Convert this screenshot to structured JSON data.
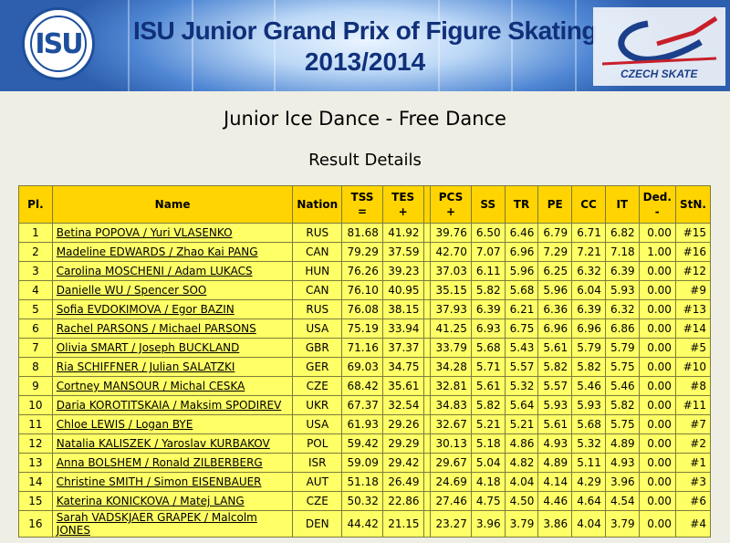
{
  "header": {
    "logo_text": "ISU",
    "title_line1": "ISU Junior Grand Prix of Figure Skating",
    "title_line2": "2013/2014",
    "sponsor_text": "CZECH SKATE"
  },
  "event_title": "Junior Ice Dance - Free Dance",
  "subtitle": "Result Details",
  "table": {
    "headers": {
      "pl": "Pl.",
      "name": "Name",
      "nation": "Nation",
      "tss": "TSS",
      "tss_sub": "=",
      "tes": "TES",
      "tes_sub": "+",
      "pcs": "PCS",
      "pcs_sub": "+",
      "ss": "SS",
      "tr": "TR",
      "pe": "PE",
      "cc": "CC",
      "it": "IT",
      "ded": "Ded.",
      "ded_sub": "-",
      "stn": "StN."
    },
    "rows": [
      {
        "pl": "1",
        "name": "Betina POPOVA / Yuri VLASENKO",
        "nation": "RUS",
        "tss": "81.68",
        "tes": "41.92",
        "pcs": "39.76",
        "ss": "6.50",
        "tr": "6.46",
        "pe": "6.79",
        "cc": "6.71",
        "it": "6.82",
        "ded": "0.00",
        "stn": "#15"
      },
      {
        "pl": "2",
        "name": "Madeline EDWARDS / Zhao Kai PANG",
        "nation": "CAN",
        "tss": "79.29",
        "tes": "37.59",
        "pcs": "42.70",
        "ss": "7.07",
        "tr": "6.96",
        "pe": "7.29",
        "cc": "7.21",
        "it": "7.18",
        "ded": "1.00",
        "stn": "#16"
      },
      {
        "pl": "3",
        "name": "Carolina MOSCHENI / Adam LUKACS",
        "nation": "HUN",
        "tss": "76.26",
        "tes": "39.23",
        "pcs": "37.03",
        "ss": "6.11",
        "tr": "5.96",
        "pe": "6.25",
        "cc": "6.32",
        "it": "6.39",
        "ded": "0.00",
        "stn": "#12"
      },
      {
        "pl": "4",
        "name": "Danielle WU / Spencer SOO",
        "nation": "CAN",
        "tss": "76.10",
        "tes": "40.95",
        "pcs": "35.15",
        "ss": "5.82",
        "tr": "5.68",
        "pe": "5.96",
        "cc": "6.04",
        "it": "5.93",
        "ded": "0.00",
        "stn": "#9"
      },
      {
        "pl": "5",
        "name": "Sofia EVDOKIMOVA / Egor BAZIN",
        "nation": "RUS",
        "tss": "76.08",
        "tes": "38.15",
        "pcs": "37.93",
        "ss": "6.39",
        "tr": "6.21",
        "pe": "6.36",
        "cc": "6.39",
        "it": "6.32",
        "ded": "0.00",
        "stn": "#13"
      },
      {
        "pl": "6",
        "name": "Rachel PARSONS / Michael PARSONS",
        "nation": "USA",
        "tss": "75.19",
        "tes": "33.94",
        "pcs": "41.25",
        "ss": "6.93",
        "tr": "6.75",
        "pe": "6.96",
        "cc": "6.96",
        "it": "6.86",
        "ded": "0.00",
        "stn": "#14"
      },
      {
        "pl": "7",
        "name": "Olivia SMART / Joseph BUCKLAND",
        "nation": "GBR",
        "tss": "71.16",
        "tes": "37.37",
        "pcs": "33.79",
        "ss": "5.68",
        "tr": "5.43",
        "pe": "5.61",
        "cc": "5.79",
        "it": "5.79",
        "ded": "0.00",
        "stn": "#5"
      },
      {
        "pl": "8",
        "name": "Ria SCHIFFNER / Julian SALATZKI",
        "nation": "GER",
        "tss": "69.03",
        "tes": "34.75",
        "pcs": "34.28",
        "ss": "5.71",
        "tr": "5.57",
        "pe": "5.82",
        "cc": "5.82",
        "it": "5.75",
        "ded": "0.00",
        "stn": "#10"
      },
      {
        "pl": "9",
        "name": "Cortney MANSOUR / Michal CESKA",
        "nation": "CZE",
        "tss": "68.42",
        "tes": "35.61",
        "pcs": "32.81",
        "ss": "5.61",
        "tr": "5.32",
        "pe": "5.57",
        "cc": "5.46",
        "it": "5.46",
        "ded": "0.00",
        "stn": "#8"
      },
      {
        "pl": "10",
        "name": "Daria KOROTITSKAIA / Maksim SPODIREV",
        "nation": "UKR",
        "tss": "67.37",
        "tes": "32.54",
        "pcs": "34.83",
        "ss": "5.82",
        "tr": "5.64",
        "pe": "5.93",
        "cc": "5.93",
        "it": "5.82",
        "ded": "0.00",
        "stn": "#11"
      },
      {
        "pl": "11",
        "name": "Chloe LEWIS / Logan BYE",
        "nation": "USA",
        "tss": "61.93",
        "tes": "29.26",
        "pcs": "32.67",
        "ss": "5.21",
        "tr": "5.21",
        "pe": "5.61",
        "cc": "5.68",
        "it": "5.75",
        "ded": "0.00",
        "stn": "#7"
      },
      {
        "pl": "12",
        "name": "Natalia KALISZEK / Yaroslav KURBAKOV",
        "nation": "POL",
        "tss": "59.42",
        "tes": "29.29",
        "pcs": "30.13",
        "ss": "5.18",
        "tr": "4.86",
        "pe": "4.93",
        "cc": "5.32",
        "it": "4.89",
        "ded": "0.00",
        "stn": "#2"
      },
      {
        "pl": "13",
        "name": "Anna BOLSHEM / Ronald ZILBERBERG",
        "nation": "ISR",
        "tss": "59.09",
        "tes": "29.42",
        "pcs": "29.67",
        "ss": "5.04",
        "tr": "4.82",
        "pe": "4.89",
        "cc": "5.11",
        "it": "4.93",
        "ded": "0.00",
        "stn": "#1"
      },
      {
        "pl": "14",
        "name": "Christine SMITH / Simon EISENBAUER",
        "nation": "AUT",
        "tss": "51.18",
        "tes": "26.49",
        "pcs": "24.69",
        "ss": "4.18",
        "tr": "4.04",
        "pe": "4.14",
        "cc": "4.29",
        "it": "3.96",
        "ded": "0.00",
        "stn": "#3"
      },
      {
        "pl": "15",
        "name": "Katerina KONICKOVA / Matej LANG",
        "nation": "CZE",
        "tss": "50.32",
        "tes": "22.86",
        "pcs": "27.46",
        "ss": "4.75",
        "tr": "4.50",
        "pe": "4.46",
        "cc": "4.64",
        "it": "4.54",
        "ded": "0.00",
        "stn": "#6"
      },
      {
        "pl": "16",
        "name": "Sarah VADSKJAER GRAPEK / Malcolm JONES",
        "nation": "DEN",
        "tss": "44.42",
        "tes": "21.15",
        "pcs": "23.27",
        "ss": "3.96",
        "tr": "3.79",
        "pe": "3.86",
        "cc": "4.04",
        "it": "3.79",
        "ded": "0.00",
        "stn": "#4"
      }
    ]
  }
}
